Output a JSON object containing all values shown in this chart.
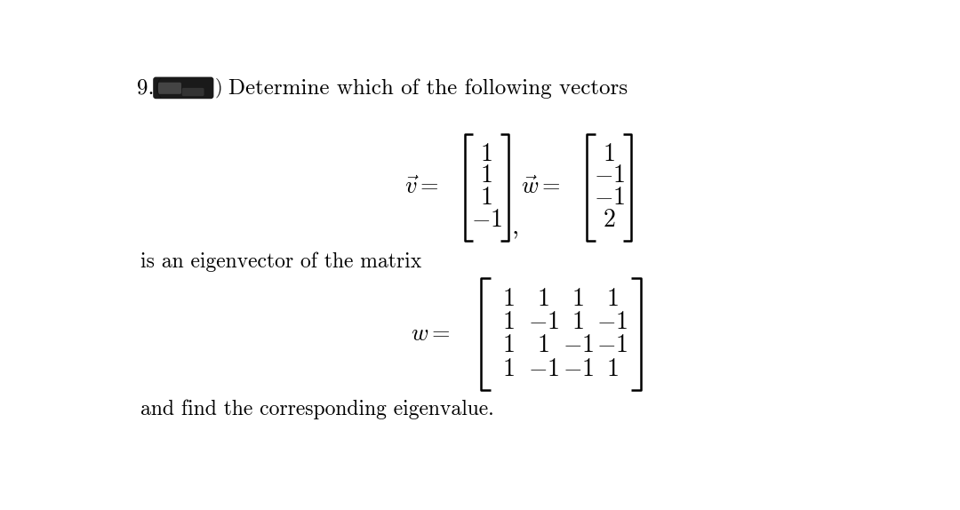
{
  "bg_color": "#ffffff",
  "text_color": "#000000",
  "title_number": "9.",
  "title_text": "Determine which of the following vectors",
  "vec_v_label": "$\\vec{v} =$",
  "vec_v_entries": [
    "1",
    "1",
    "1",
    "$-$1"
  ],
  "vec_w_label": "$\\vec{w} =$",
  "vec_w_entries": [
    "1",
    "$-$1",
    "$-$1",
    "2"
  ],
  "middle_text": "is an eigenvector of the matrix",
  "matrix_label": "$w =$",
  "matrix_rows": [
    [
      "1",
      "1",
      "1",
      "1"
    ],
    [
      "1",
      "$-$1",
      "1",
      "$-$1"
    ],
    [
      "1",
      "1",
      "$-$1",
      "$-$1"
    ],
    [
      "1",
      "$-$1",
      "$-$1",
      "1"
    ]
  ],
  "bottom_text": "and find the corresponding eigenvalue.",
  "fs_title": 18,
  "fs_body": 17,
  "fs_math": 19,
  "fs_entry": 20
}
